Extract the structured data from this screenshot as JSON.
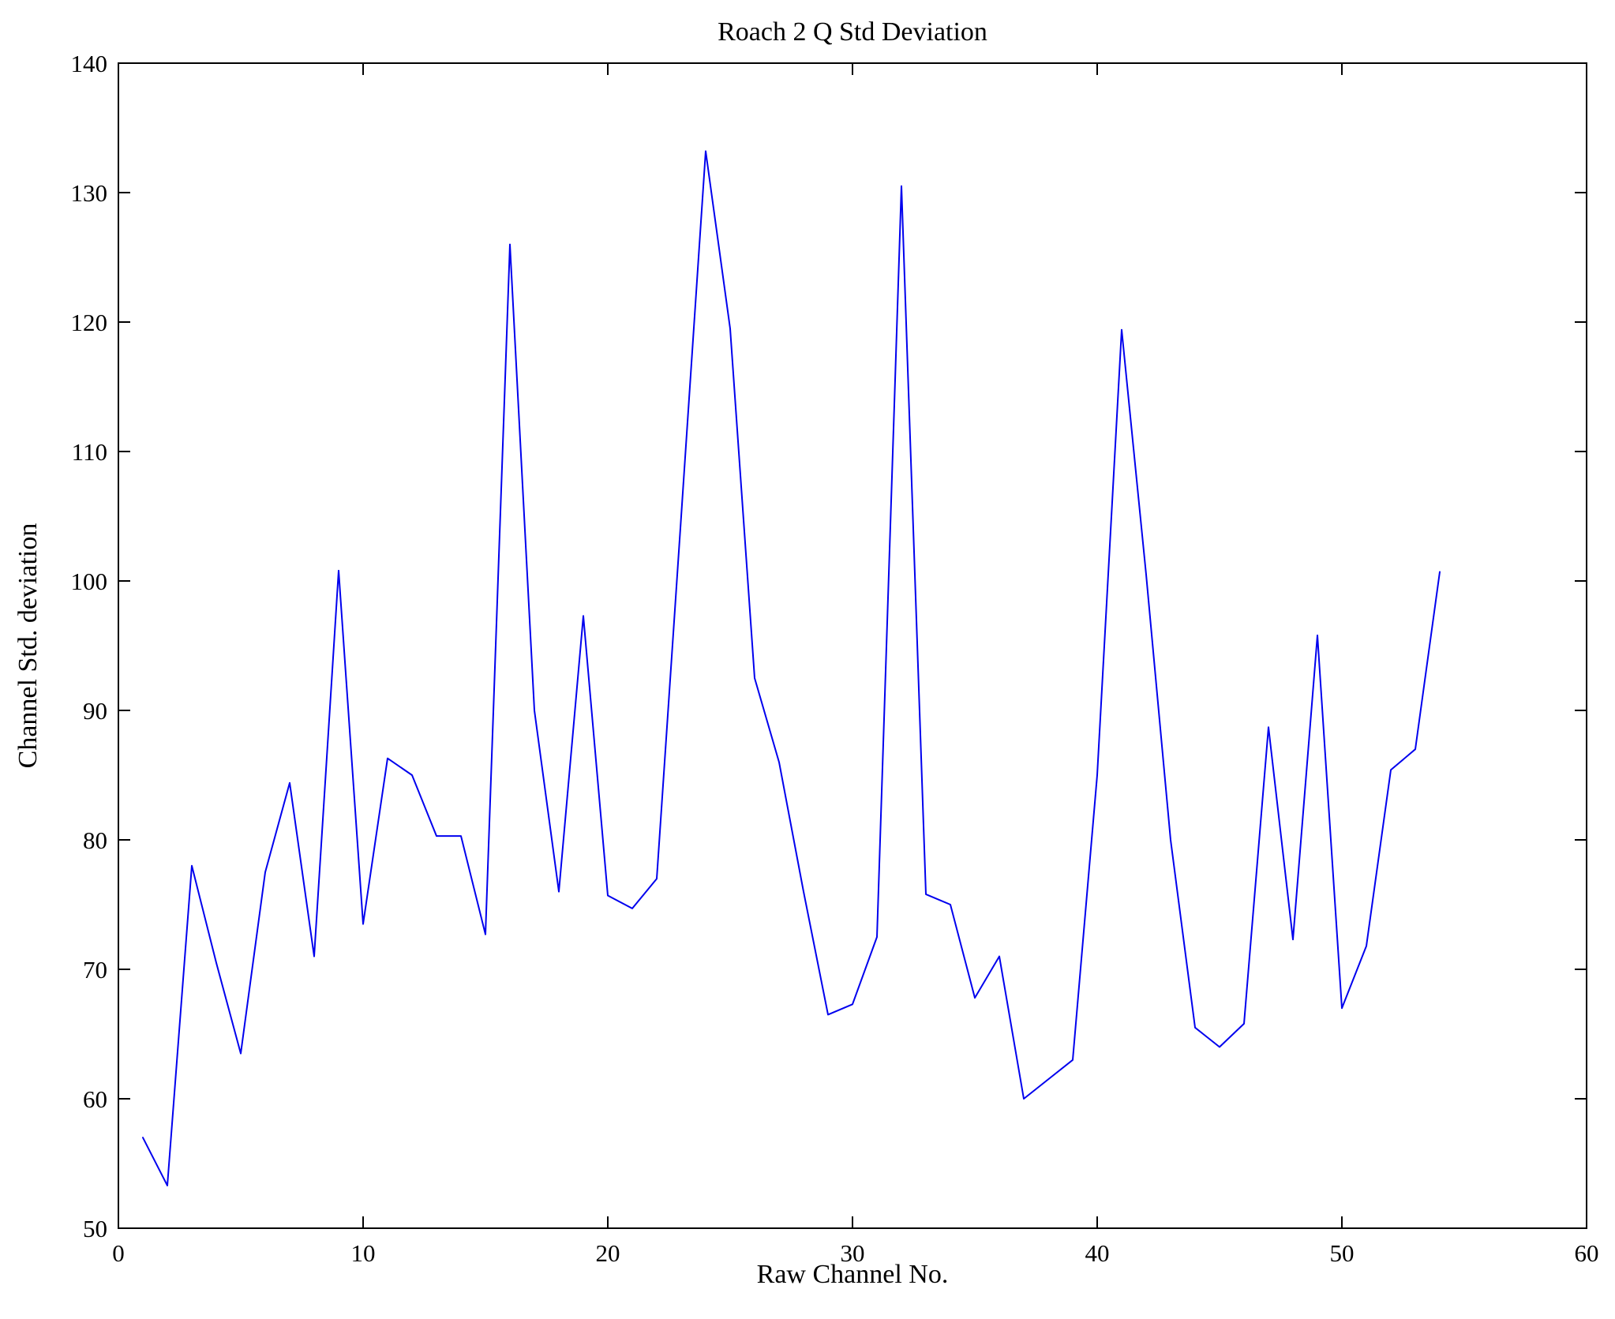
{
  "figure": {
    "background_color": "#ffffff",
    "axis_color": "#000000"
  },
  "chart_data": {
    "type": "line",
    "title": "Roach 2 Q Std Deviation",
    "xlabel": "Raw Channel No.",
    "ylabel": "Channel Std. deviation",
    "xlim": [
      0,
      60
    ],
    "ylim": [
      50,
      140
    ],
    "xticks": [
      0,
      10,
      20,
      30,
      40,
      50,
      60
    ],
    "yticks": [
      50,
      60,
      70,
      80,
      90,
      100,
      110,
      120,
      130,
      140
    ],
    "grid": false,
    "legend_position": "none",
    "line_color": "#0000ee",
    "line_width": 2,
    "x": [
      1,
      2,
      3,
      4,
      5,
      6,
      7,
      8,
      9,
      10,
      11,
      12,
      13,
      14,
      15,
      16,
      17,
      18,
      19,
      20,
      21,
      22,
      23,
      24,
      25,
      26,
      27,
      28,
      29,
      30,
      31,
      32,
      33,
      34,
      35,
      36,
      37,
      38,
      39,
      40,
      41,
      42,
      43,
      44,
      45,
      46,
      47,
      48,
      49,
      50,
      51,
      52,
      53,
      54
    ],
    "y": [
      57.0,
      53.3,
      78.0,
      70.5,
      63.5,
      77.5,
      84.4,
      71.0,
      100.8,
      73.5,
      86.3,
      85.0,
      80.3,
      80.3,
      72.7,
      126.0,
      90.0,
      76.0,
      97.3,
      75.7,
      74.7,
      77.0,
      105.0,
      133.2,
      119.5,
      92.5,
      86.0,
      76.0,
      66.5,
      67.3,
      72.5,
      130.5,
      75.8,
      75.0,
      67.8,
      71.0,
      60.0,
      61.5,
      63.0,
      85.0,
      119.4,
      100.5,
      80.0,
      65.5,
      64.0,
      65.8,
      88.7,
      72.3,
      95.8,
      67.0,
      71.8,
      85.4,
      87.0,
      100.7
    ]
  }
}
